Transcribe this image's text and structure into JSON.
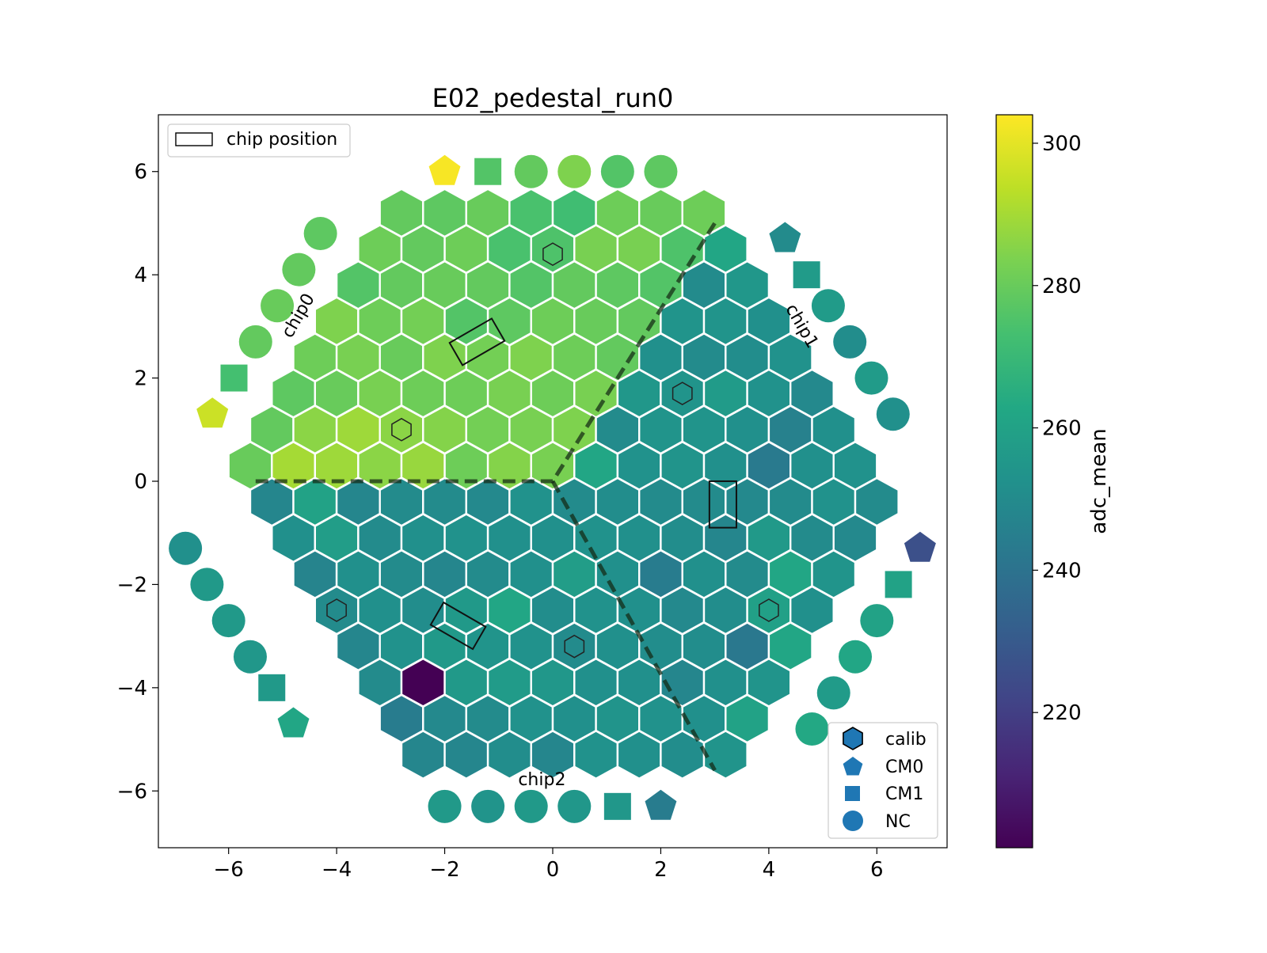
{
  "chart_data": {
    "type": "heatmap",
    "title": "E02_pedestal_run0",
    "xlim": [
      -7.3,
      7.3
    ],
    "ylim": [
      -7.1,
      7.1
    ],
    "xticks": [
      -6,
      -4,
      -2,
      0,
      2,
      4,
      6
    ],
    "yticks": [
      -6,
      -4,
      -2,
      0,
      2,
      4,
      6
    ],
    "xtick_labels": [
      "−6",
      "−4",
      "−2",
      "0",
      "2",
      "4",
      "6"
    ],
    "ytick_labels": [
      "−6",
      "−4",
      "−2",
      "0",
      "2",
      "4",
      "6"
    ],
    "grid": false,
    "colorbar": {
      "label": "adc_mean",
      "colormap": "viridis",
      "range": [
        201,
        304
      ],
      "ticks": [
        220,
        240,
        260,
        280,
        300
      ],
      "tick_labels": [
        "220",
        "240",
        "260",
        "280",
        "300"
      ]
    },
    "legend_chip": {
      "placement": "upper-left",
      "label": "chip position"
    },
    "legend_markers": {
      "placement": "lower-right",
      "items": [
        {
          "label": "calib",
          "marker": "hexagon"
        },
        {
          "label": "CM0",
          "marker": "pentagon"
        },
        {
          "label": "CM1",
          "marker": "square"
        },
        {
          "label": "NC",
          "marker": "circle"
        }
      ]
    },
    "chip_labels": [
      {
        "text": "chip0",
        "x": -4.7,
        "y": 3.2,
        "rotation": -60
      },
      {
        "text": "chip1",
        "x": 4.6,
        "y": 3.0,
        "rotation": 60
      },
      {
        "text": "chip2",
        "x": -0.2,
        "y": -5.8,
        "rotation": 0
      }
    ],
    "chip_boundaries": [
      [
        [
          -5.5,
          0
        ],
        [
          0,
          0
        ],
        [
          3.0,
          5.0
        ]
      ],
      [
        [
          0,
          0
        ],
        [
          3.0,
          -5.6
        ]
      ]
    ],
    "chip_positions": [
      {
        "cx": -1.4,
        "cy": 2.7,
        "w": 0.9,
        "h": 0.5,
        "angle": 30
      },
      {
        "cx": 3.15,
        "cy": -0.45,
        "w": 0.5,
        "h": 0.9,
        "angle": 0
      },
      {
        "cx": -1.75,
        "cy": -2.8,
        "w": 0.9,
        "h": 0.5,
        "angle": -30
      }
    ],
    "hex_rows": [
      {
        "y": 5.2,
        "x0": -2.8,
        "values": [
          279,
          278,
          280,
          274,
          272,
          281,
          280,
          281
        ]
      },
      {
        "y": 4.5,
        "x0": -3.2,
        "values": [
          281,
          279,
          281,
          274,
          275,
          283,
          283,
          275,
          262
        ]
      },
      {
        "y": 3.8,
        "x0": -3.6,
        "values": [
          276,
          279,
          280,
          279,
          276,
          279,
          278,
          276,
          250,
          255
        ]
      },
      {
        "y": 3.1,
        "x0": -4.0,
        "values": [
          284,
          281,
          282,
          276,
          278,
          281,
          280,
          279,
          254,
          254,
          252
        ]
      },
      {
        "y": 2.4,
        "x0": -4.4,
        "values": [
          281,
          283,
          280,
          284,
          282,
          284,
          281,
          279,
          252,
          250,
          251,
          253
        ]
      },
      {
        "y": 1.7,
        "x0": -4.8,
        "values": [
          278,
          280,
          283,
          281,
          281,
          283,
          281,
          283,
          255,
          254,
          257,
          253,
          249
        ]
      },
      {
        "y": 1.0,
        "x0": -5.2,
        "values": [
          279,
          286,
          289,
          286,
          285,
          282,
          283,
          284,
          250,
          254,
          254,
          252,
          246,
          252
        ]
      },
      {
        "y": 0.3,
        "x0": -5.6,
        "values": [
          280,
          290,
          289,
          286,
          288,
          281,
          285,
          283,
          262,
          253,
          254,
          252,
          243,
          252,
          253
        ]
      },
      {
        "y": -0.4,
        "x0": -5.2,
        "values": [
          248,
          260,
          248,
          250,
          250,
          249,
          253,
          250,
          251,
          250,
          250,
          249,
          250,
          253,
          250
        ]
      },
      {
        "y": -1.1,
        "x0": -4.8,
        "values": [
          252,
          258,
          250,
          252,
          253,
          252,
          252,
          253,
          252,
          251,
          248,
          256,
          250,
          249
        ]
      },
      {
        "y": -1.8,
        "x0": -4.4,
        "values": [
          247,
          252,
          250,
          248,
          250,
          252,
          258,
          252,
          244,
          252,
          250,
          262,
          254
        ]
      },
      {
        "y": -2.5,
        "x0": -4.0,
        "values": [
          250,
          252,
          251,
          256,
          262,
          251,
          253,
          252,
          249,
          251,
          259,
          252
        ]
      },
      {
        "y": -3.2,
        "x0": -3.6,
        "values": [
          248,
          253,
          256,
          254,
          253,
          250,
          252,
          251,
          251,
          242,
          262
        ]
      },
      {
        "y": -3.9,
        "x0": -3.2,
        "values": [
          250,
          201,
          256,
          257,
          255,
          252,
          252,
          248,
          252,
          254
        ]
      },
      {
        "y": -4.6,
        "x0": -2.8,
        "values": [
          244,
          249,
          250,
          253,
          252,
          254,
          253,
          252,
          260
        ]
      },
      {
        "y": -5.3,
        "x0": -2.4,
        "values": [
          248,
          248,
          251,
          248,
          253,
          252,
          251,
          254
        ]
      }
    ],
    "calib_cells": [
      [
        0.0,
        4.4
      ],
      [
        -2.8,
        1.0
      ],
      [
        2.4,
        1.7
      ],
      [
        -4.0,
        -2.5
      ],
      [
        0.4,
        -3.2
      ],
      [
        4.0,
        -2.5
      ]
    ],
    "special_markers": [
      {
        "type": "pentagon",
        "x": -2.0,
        "y": 6.0,
        "value": 303
      },
      {
        "type": "square",
        "x": -1.2,
        "y": 6.0,
        "value": 276
      },
      {
        "type": "circle",
        "x": -0.4,
        "y": 6.0,
        "value": 279
      },
      {
        "type": "circle",
        "x": 0.4,
        "y": 6.0,
        "value": 284
      },
      {
        "type": "circle",
        "x": 1.2,
        "y": 6.0,
        "value": 276
      },
      {
        "type": "circle",
        "x": 2.0,
        "y": 6.0,
        "value": 278
      },
      {
        "type": "pentagon",
        "x": 4.3,
        "y": 4.7,
        "value": 250
      },
      {
        "type": "square",
        "x": 4.7,
        "y": 4.0,
        "value": 257
      },
      {
        "type": "circle",
        "x": 5.1,
        "y": 3.4,
        "value": 257
      },
      {
        "type": "circle",
        "x": 5.5,
        "y": 2.7,
        "value": 251
      },
      {
        "type": "circle",
        "x": 5.9,
        "y": 2.0,
        "value": 257
      },
      {
        "type": "circle",
        "x": 6.3,
        "y": 1.3,
        "value": 252
      },
      {
        "type": "pentagon",
        "x": 6.8,
        "y": -1.3,
        "value": 226
      },
      {
        "type": "square",
        "x": 6.4,
        "y": -2.0,
        "value": 260
      },
      {
        "type": "circle",
        "x": 6.0,
        "y": -2.7,
        "value": 260
      },
      {
        "type": "circle",
        "x": 5.6,
        "y": -3.4,
        "value": 262
      },
      {
        "type": "circle",
        "x": 5.2,
        "y": -4.1,
        "value": 257
      },
      {
        "type": "circle",
        "x": 4.8,
        "y": -4.8,
        "value": 263
      },
      {
        "type": "pentagon",
        "x": 2.0,
        "y": -6.3,
        "value": 244
      },
      {
        "type": "square",
        "x": 1.2,
        "y": -6.3,
        "value": 255
      },
      {
        "type": "circle",
        "x": 0.4,
        "y": -6.3,
        "value": 255
      },
      {
        "type": "circle",
        "x": -0.4,
        "y": -6.3,
        "value": 256
      },
      {
        "type": "circle",
        "x": -1.2,
        "y": -6.3,
        "value": 254
      },
      {
        "type": "circle",
        "x": -2.0,
        "y": -6.3,
        "value": 256
      },
      {
        "type": "pentagon",
        "x": -4.8,
        "y": -4.7,
        "value": 262
      },
      {
        "type": "square",
        "x": -5.2,
        "y": -4.0,
        "value": 256
      },
      {
        "type": "circle",
        "x": -5.6,
        "y": -3.4,
        "value": 255
      },
      {
        "type": "circle",
        "x": -6.0,
        "y": -2.7,
        "value": 256
      },
      {
        "type": "circle",
        "x": -6.4,
        "y": -2.0,
        "value": 256
      },
      {
        "type": "circle",
        "x": -6.8,
        "y": -1.3,
        "value": 252
      },
      {
        "type": "pentagon",
        "x": -6.3,
        "y": 1.3,
        "value": 296
      },
      {
        "type": "square",
        "x": -5.9,
        "y": 2.0,
        "value": 273
      },
      {
        "type": "circle",
        "x": -5.5,
        "y": 2.7,
        "value": 279
      },
      {
        "type": "circle",
        "x": -5.1,
        "y": 3.4,
        "value": 280
      },
      {
        "type": "circle",
        "x": -4.7,
        "y": 4.1,
        "value": 279
      },
      {
        "type": "circle",
        "x": -4.3,
        "y": 4.8,
        "value": 278
      }
    ]
  }
}
